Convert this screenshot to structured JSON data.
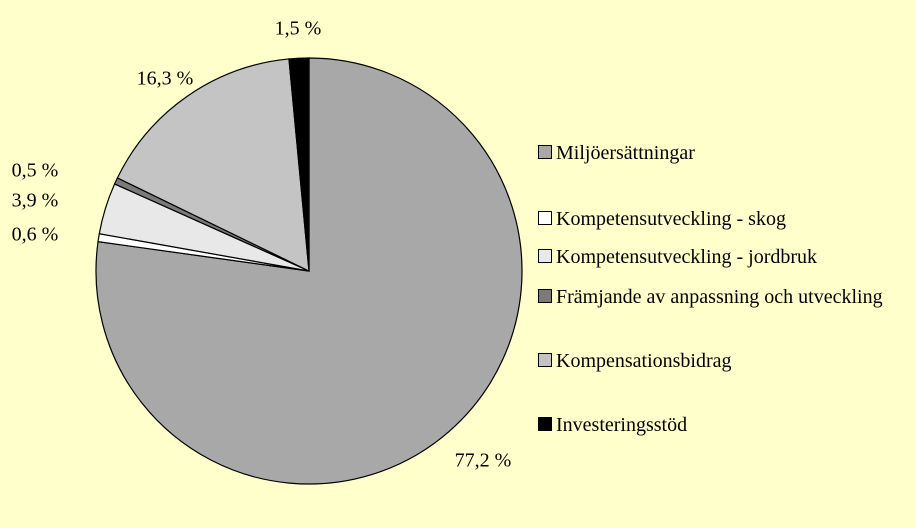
{
  "chart_data": {
    "type": "pie",
    "categories": [
      "Miljöersättningar",
      "Kompetensutveckling - skog",
      "Kompetensutveckling - jordbruk",
      "Främjande av anpassning och utveckling",
      "Kompensationsbidrag",
      "Investeringsstöd"
    ],
    "values": [
      77.2,
      0.6,
      3.9,
      0.5,
      16.3,
      1.5
    ],
    "value_labels": [
      "77,2 %",
      "0,6 %",
      "3,9 %",
      "0,5 %",
      "16,3 %",
      "1,5 %"
    ],
    "colors": [
      "#a8a8a8",
      "#ffffff",
      "#e8e8e8",
      "#7a7a7a",
      "#c4c4c4",
      "#000000"
    ],
    "legend": "right"
  }
}
